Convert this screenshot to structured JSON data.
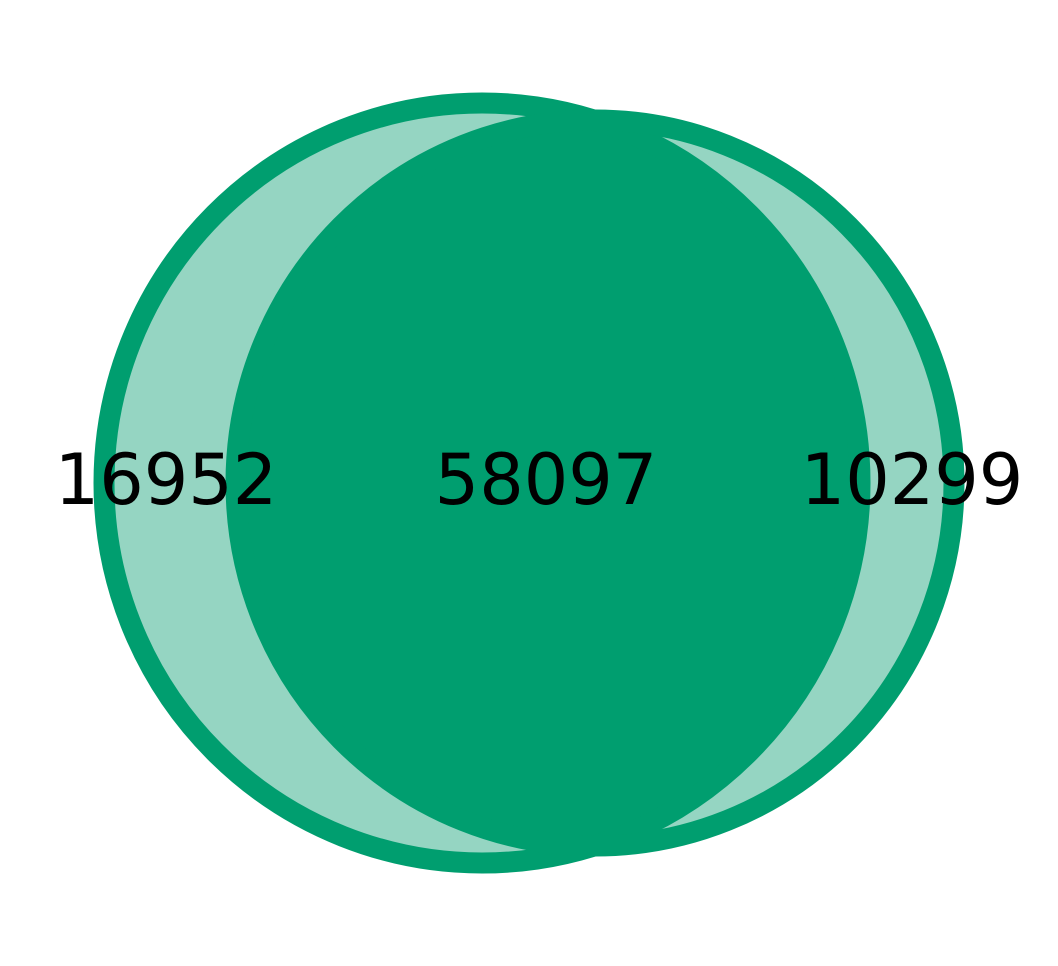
{
  "diagram": {
    "type": "venn-2",
    "colors": {
      "circle_fill": "#95D5C2",
      "overlap_fill": "#009E6F",
      "outline": "#009E6F",
      "label_text": "#000000"
    },
    "regions": {
      "left_only": "16952",
      "intersection": "58097",
      "right_only": "10299"
    }
  }
}
